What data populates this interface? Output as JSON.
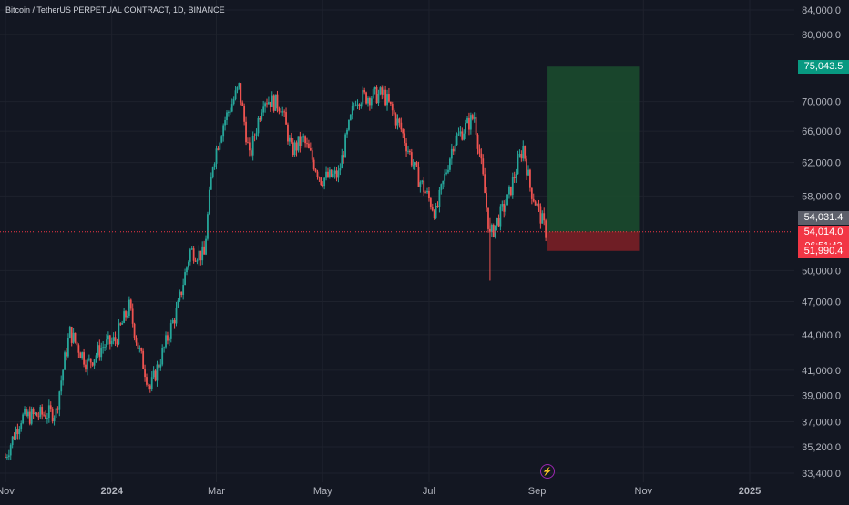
{
  "header": {
    "symbol_title": "Bitcoin / TetherUS PERPETUAL CONTRACT, 1D, BINANCE"
  },
  "colors": {
    "background": "#131722",
    "grid": "#1e222d",
    "up": "#26a69a",
    "down": "#ef5350",
    "axis_text": "#b2b5be",
    "profit_zone": "#1b4d2e",
    "loss_zone": "#7a1f26"
  },
  "price_axis": {
    "ticks": [
      {
        "value": 84000,
        "label": "84,000.0"
      },
      {
        "value": 80000,
        "label": "80,000.0"
      },
      {
        "value": 70000,
        "label": "70,000.0"
      },
      {
        "value": 66000,
        "label": "66,000.0"
      },
      {
        "value": 62000,
        "label": "62,000.0"
      },
      {
        "value": 58000,
        "label": "58,000.0"
      },
      {
        "value": 50000,
        "label": "50,000.0"
      },
      {
        "value": 47000,
        "label": "47,000.0"
      },
      {
        "value": 44000,
        "label": "44,000.0"
      },
      {
        "value": 41000,
        "label": "41,000.0"
      },
      {
        "value": 39000,
        "label": "39,000.0"
      },
      {
        "value": 37000,
        "label": "37,000.0"
      },
      {
        "value": 35200,
        "label": "35,200.0"
      },
      {
        "value": 33400,
        "label": "33,400.0"
      }
    ],
    "markers": [
      {
        "value": 75043.5,
        "label": "75,043.5",
        "color": "#089981"
      },
      {
        "value": 54031.4,
        "label": "54,031.4",
        "color": "#5d606b"
      },
      {
        "value": 54014.0,
        "label": "54,014.0",
        "color": "#f23645"
      },
      {
        "value": 54014.0,
        "label": "06:51:43",
        "color": "#f23645",
        "countdown": true
      },
      {
        "value": 51990.4,
        "label": "51,990.4",
        "color": "#f23645"
      }
    ]
  },
  "time_axis": {
    "labels": [
      "Nov",
      "2024",
      "Mar",
      "May",
      "Jul",
      "Sep",
      "Nov",
      "2025"
    ]
  },
  "chart_data": {
    "type": "candlestick",
    "symbol": "BTCUSDT.P",
    "interval": "1D",
    "exchange": "BINANCE",
    "x_range": [
      "2023-11-01",
      "2025-03-01"
    ],
    "ylim": [
      33400,
      84000
    ],
    "y_scale": "log",
    "price_series": [
      {
        "date": "2023-11-01",
        "close": 34500
      },
      {
        "date": "2023-11-10",
        "close": 37300
      },
      {
        "date": "2023-11-20",
        "close": 37500
      },
      {
        "date": "2023-11-30",
        "close": 37700
      },
      {
        "date": "2023-12-05",
        "close": 41900
      },
      {
        "date": "2023-12-08",
        "close": 44200
      },
      {
        "date": "2023-12-18",
        "close": 41500
      },
      {
        "date": "2023-12-27",
        "close": 43000
      },
      {
        "date": "2024-01-03",
        "close": 43500
      },
      {
        "date": "2024-01-11",
        "close": 46500
      },
      {
        "date": "2024-01-16",
        "close": 43000
      },
      {
        "date": "2024-01-23",
        "close": 39500
      },
      {
        "date": "2024-01-31",
        "close": 42800
      },
      {
        "date": "2024-02-08",
        "close": 46500
      },
      {
        "date": "2024-02-15",
        "close": 52000
      },
      {
        "date": "2024-02-23",
        "close": 51500
      },
      {
        "date": "2024-02-28",
        "close": 62000
      },
      {
        "date": "2024-03-05",
        "close": 67000
      },
      {
        "date": "2024-03-14",
        "close": 72000
      },
      {
        "date": "2024-03-20",
        "close": 62500
      },
      {
        "date": "2024-03-28",
        "close": 70500
      },
      {
        "date": "2024-04-07",
        "close": 69500
      },
      {
        "date": "2024-04-13",
        "close": 63500
      },
      {
        "date": "2024-04-20",
        "close": 64800
      },
      {
        "date": "2024-04-30",
        "close": 60000
      },
      {
        "date": "2024-05-10",
        "close": 60500
      },
      {
        "date": "2024-05-20",
        "close": 70500
      },
      {
        "date": "2024-06-05",
        "close": 71000
      },
      {
        "date": "2024-06-15",
        "close": 66200
      },
      {
        "date": "2024-06-24",
        "close": 60500
      },
      {
        "date": "2024-07-05",
        "close": 56000
      },
      {
        "date": "2024-07-15",
        "close": 64500
      },
      {
        "date": "2024-07-27",
        "close": 68000
      },
      {
        "date": "2024-08-05",
        "close": 53500
      },
      {
        "date": "2024-08-15",
        "close": 57500
      },
      {
        "date": "2024-08-24",
        "close": 64000
      },
      {
        "date": "2024-08-28",
        "close": 59000
      },
      {
        "date": "2024-09-06",
        "close": 54014
      }
    ],
    "events": [
      {
        "date": "2024-08-05",
        "low": 49000
      }
    ],
    "position_tool": {
      "start_date": "2024-09-07",
      "end_date": "2024-10-30",
      "entry": 54031.4,
      "target": 75043.5,
      "stop": 51990.4
    },
    "last_price": 54014.0,
    "countdown": "06:51:43"
  }
}
